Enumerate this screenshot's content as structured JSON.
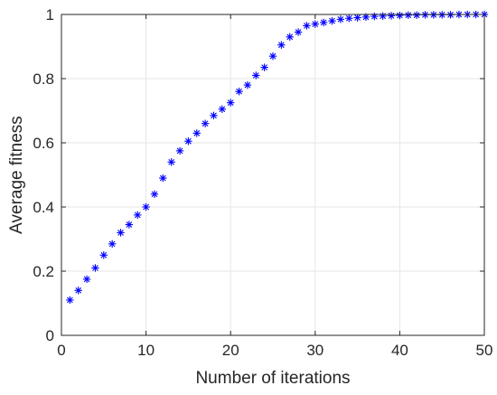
{
  "chart_data": {
    "type": "scatter",
    "title": "",
    "xlabel": "Number of iterations",
    "ylabel": "Average fitness",
    "xlim": [
      0,
      50
    ],
    "ylim": [
      0,
      1
    ],
    "x_ticks": [
      0,
      10,
      20,
      30,
      40,
      50
    ],
    "y_ticks": [
      0,
      0.2,
      0.4,
      0.6,
      0.8,
      1
    ],
    "x_tick_labels": [
      "0",
      "10",
      "20",
      "30",
      "40",
      "50"
    ],
    "y_tick_labels": [
      "0",
      "0.2",
      "0.4",
      "0.6",
      "0.8",
      "1"
    ],
    "grid": true,
    "box": true,
    "marker": "asterisk",
    "marker_color": "#0000FF",
    "series": [
      {
        "x": [
          1,
          2,
          3,
          4,
          5,
          6,
          7,
          8,
          9,
          10,
          11,
          12,
          13,
          14,
          15,
          16,
          17,
          18,
          19,
          20,
          21,
          22,
          23,
          24,
          25,
          26,
          27,
          28,
          29,
          30,
          31,
          32,
          33,
          34,
          35,
          36,
          37,
          38,
          39,
          40,
          41,
          42,
          43,
          44,
          45,
          46,
          47,
          48,
          49,
          50
        ],
        "y": [
          0.11,
          0.14,
          0.175,
          0.21,
          0.25,
          0.285,
          0.32,
          0.345,
          0.375,
          0.4,
          0.44,
          0.49,
          0.54,
          0.575,
          0.605,
          0.63,
          0.66,
          0.685,
          0.705,
          0.725,
          0.76,
          0.78,
          0.81,
          0.835,
          0.87,
          0.905,
          0.93,
          0.945,
          0.965,
          0.97,
          0.975,
          0.98,
          0.985,
          0.988,
          0.99,
          0.992,
          0.994,
          0.995,
          0.996,
          0.997,
          0.998,
          0.998,
          0.999,
          0.999,
          0.999,
          0.999,
          1.0,
          1.0,
          1.0,
          1.0
        ]
      }
    ]
  }
}
